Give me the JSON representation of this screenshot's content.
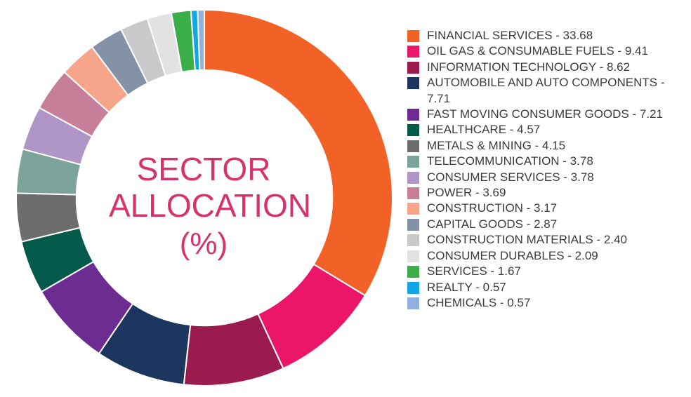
{
  "chart_data": {
    "type": "pie",
    "title": [
      "SECTOR",
      "ALLOCATION",
      "(%)"
    ],
    "series": [
      {
        "label": "FINANCIAL SERVICES",
        "value": 33.68,
        "color": "#f26125",
        "legend": "FINANCIAL SERVICES - 33.68"
      },
      {
        "label": "OIL GAS & CONSUMABLE FUELS",
        "value": 9.41,
        "color": "#eb1669",
        "legend": "OIL GAS & CONSUMABLE FUELS - 9.41"
      },
      {
        "label": "INFORMATION TECHNOLOGY",
        "value": 8.62,
        "color": "#9b1b4e",
        "legend": "INFORMATION TECHNOLOGY - 8.62"
      },
      {
        "label": "AUTOMOBILE AND AUTO COMPONENTS",
        "value": 7.71,
        "color": "#1c3660",
        "legend": "AUTOMOBILE AND AUTO COMPONENTS - 7.71"
      },
      {
        "label": "FAST MOVING CONSUMER GOODS",
        "value": 7.21,
        "color": "#6c2c91",
        "legend": "FAST MOVING CONSUMER GOODS - 7.21"
      },
      {
        "label": "HEALTHCARE",
        "value": 4.57,
        "color": "#045a4a",
        "legend": "HEALTHCARE - 4.57"
      },
      {
        "label": "METALS & MINING",
        "value": 4.15,
        "color": "#6d6d6d",
        "legend": "METALS & MINING - 4.15"
      },
      {
        "label": "TELECOMMUNICATION",
        "value": 3.78,
        "color": "#7ba39a",
        "legend": "TELECOMMUNICATION - 3.78"
      },
      {
        "label": "CONSUMER SERVICES",
        "value": 3.78,
        "color": "#b095c7",
        "legend": "CONSUMER SERVICES - 3.78"
      },
      {
        "label": "POWER",
        "value": 3.69,
        "color": "#c77e98",
        "legend": "POWER - 3.69"
      },
      {
        "label": "CONSTRUCTION",
        "value": 3.17,
        "color": "#f6a58a",
        "legend": "CONSTRUCTION - 3.17"
      },
      {
        "label": "CAPITAL GOODS",
        "value": 2.87,
        "color": "#8492a8",
        "legend": "CAPITAL GOODS - 2.87"
      },
      {
        "label": "CONSTRUCTION MATERIALS",
        "value": 2.4,
        "color": "#c9c9c9",
        "legend": "CONSTRUCTION MATERIALS - 2.40"
      },
      {
        "label": "CONSUMER DURABLES",
        "value": 2.09,
        "color": "#e2e2e2",
        "legend": "CONSUMER DURABLES - 2.09"
      },
      {
        "label": "SERVICES",
        "value": 1.67,
        "color": "#3cae49",
        "legend": "SERVICES - 1.67"
      },
      {
        "label": "REALTY",
        "value": 0.57,
        "color": "#13a6e4",
        "legend": "REALTY - 0.57"
      },
      {
        "label": "CHEMICALS",
        "value": 0.57,
        "color": "#8fb0e0",
        "legend": "CHEMICALS - 0.57"
      }
    ],
    "legend_position": "right",
    "inner_radius_ratio": 0.68
  }
}
